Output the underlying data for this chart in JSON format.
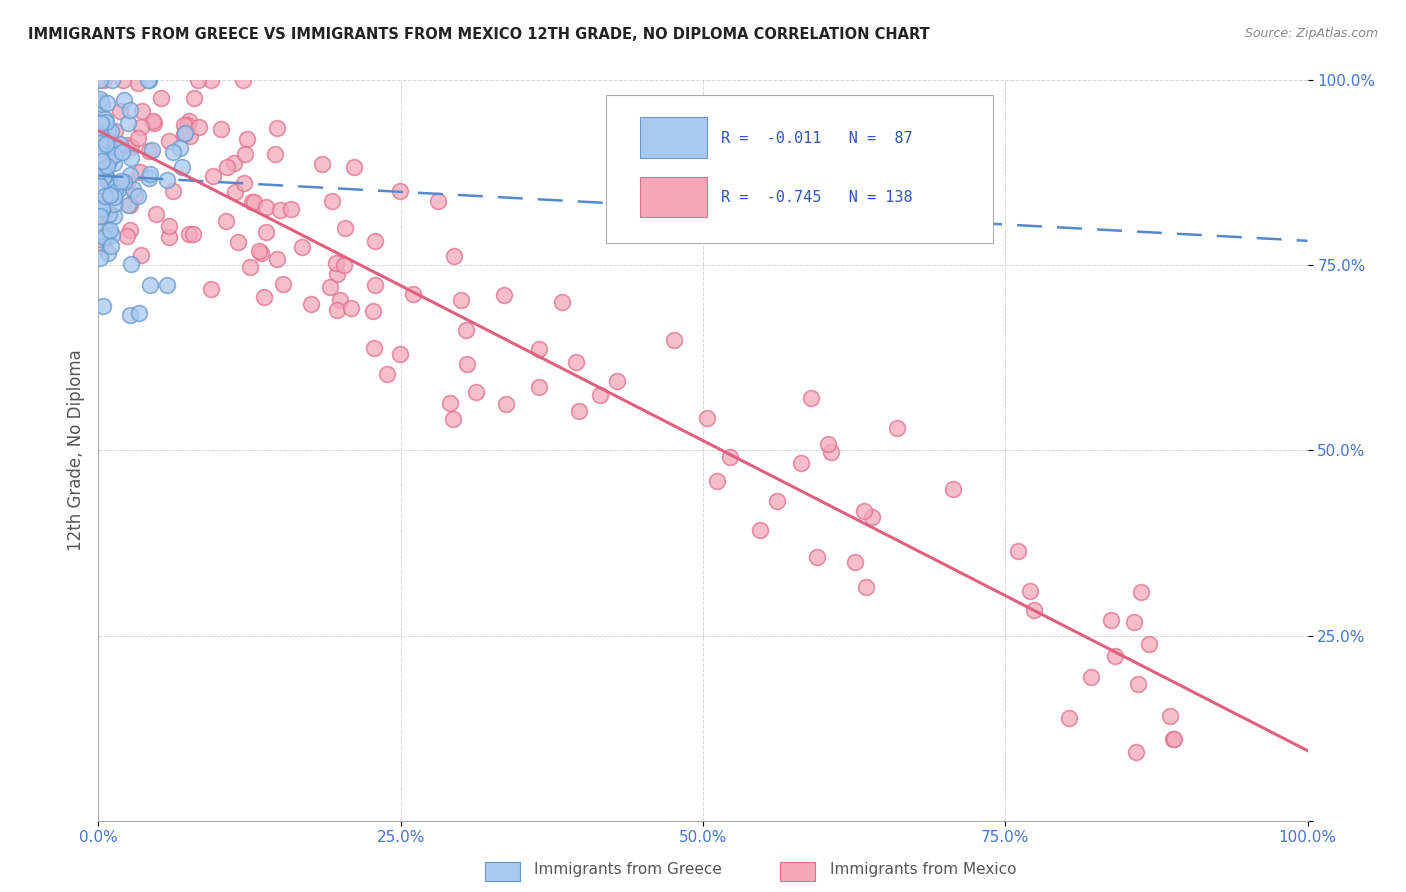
{
  "title": "IMMIGRANTS FROM GREECE VS IMMIGRANTS FROM MEXICO 12TH GRADE, NO DIPLOMA CORRELATION CHART",
  "source": "Source: ZipAtlas.com",
  "ylabel": "12th Grade, No Diploma",
  "greece_R": -0.011,
  "greece_N": 87,
  "mexico_R": -0.745,
  "mexico_N": 138,
  "greece_color": "#A8C8F0",
  "mexico_color": "#F4A8B8",
  "greece_edge_color": "#6699CC",
  "mexico_edge_color": "#E07090",
  "greece_line_color": "#5588CC",
  "mexico_line_color": "#E06080",
  "background_color": "#FFFFFF",
  "grid_color": "#BBBBBB",
  "title_color": "#222222",
  "tick_color": "#4477CC",
  "legend_text_color": "#3355BB",
  "ylabel_color": "#555555",
  "source_color": "#888888",
  "bottom_legend_color": "#555555"
}
